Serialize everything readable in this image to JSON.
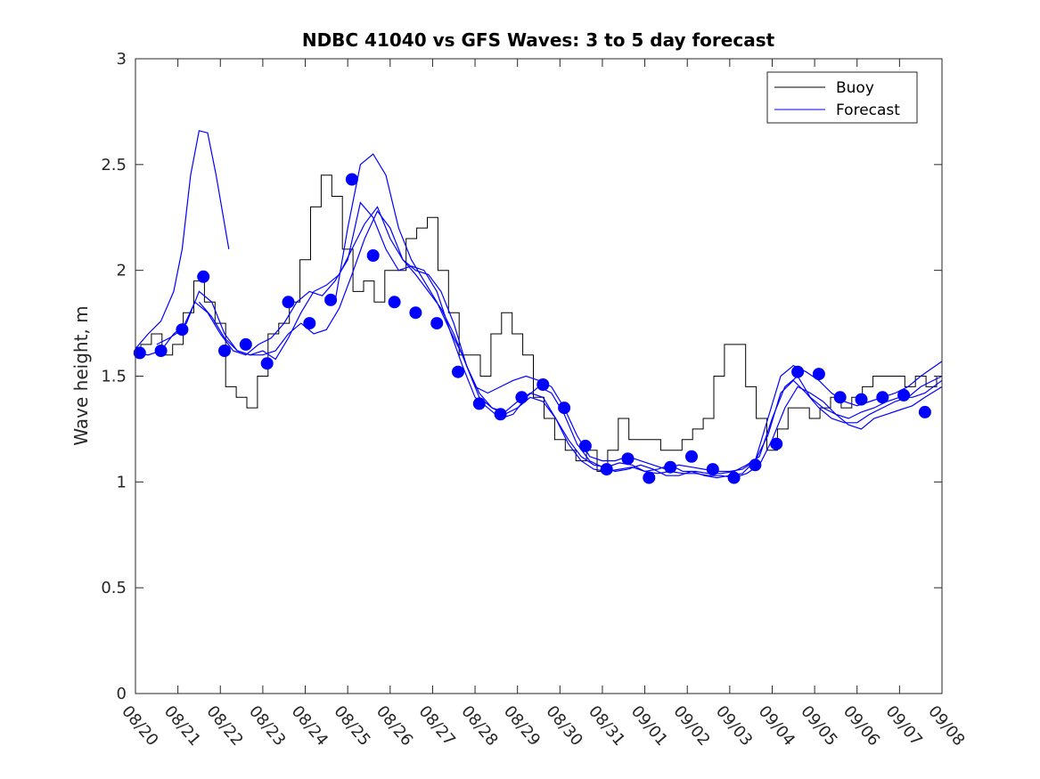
{
  "chart_data": {
    "type": "line",
    "title": "NDBC 41040 vs GFS Waves: 3 to 5 day forecast",
    "xlabel": "",
    "ylabel": "Wave height, m",
    "xlim": [
      0,
      19
    ],
    "ylim": [
      0,
      3
    ],
    "x_tick_labels": [
      "08/20",
      "08/21",
      "08/22",
      "08/23",
      "08/24",
      "08/25",
      "08/26",
      "08/27",
      "08/28",
      "08/29",
      "08/30",
      "08/31",
      "09/01",
      "09/02",
      "09/03",
      "09/04",
      "09/05",
      "09/06",
      "09/07",
      "09/08"
    ],
    "y_ticks": [
      0,
      0.5,
      1,
      1.5,
      2,
      2.5,
      3
    ],
    "y_tick_labels": [
      "0",
      "0.5",
      "1",
      "1.5",
      "2",
      "2.5",
      "3"
    ],
    "legend": {
      "location": "top-right",
      "entries": [
        {
          "label": "Buoy",
          "color": "#000000"
        },
        {
          "label": "Forecast",
          "color": "#0000ff"
        }
      ]
    },
    "colors": {
      "buoy": "#000000",
      "forecast": "#0000ff",
      "markers": "#0000ff"
    },
    "series": [
      {
        "name": "Buoy",
        "x": [
          0,
          0.25,
          0.5,
          0.75,
          1,
          1.25,
          1.5,
          1.75,
          2,
          2.25,
          2.5,
          2.75,
          3,
          3.25,
          3.5,
          3.75,
          4,
          4.25,
          4.5,
          4.75,
          5,
          5.25,
          5.5,
          5.75,
          6,
          6.25,
          6.5,
          6.75,
          7,
          7.25,
          7.5,
          7.75,
          8,
          8.25,
          8.5,
          8.75,
          9,
          9.25,
          9.5,
          9.75,
          10,
          10.25,
          10.5,
          10.75,
          11,
          11.25,
          11.5,
          11.75,
          12,
          12.25,
          12.5,
          12.75,
          13,
          13.25,
          13.5,
          13.75,
          14,
          14.25,
          14.5,
          14.75,
          15,
          15.25,
          15.5,
          15.75,
          16,
          16.25,
          16.5,
          16.75,
          17,
          17.25,
          17.5,
          17.75,
          18,
          18.25,
          18.5,
          18.75,
          19
        ],
        "values": [
          1.6,
          1.65,
          1.7,
          1.6,
          1.65,
          1.8,
          1.95,
          1.85,
          1.75,
          1.45,
          1.4,
          1.35,
          1.5,
          1.7,
          1.75,
          1.85,
          2.05,
          2.3,
          2.45,
          2.35,
          2.1,
          1.9,
          1.95,
          1.85,
          2.0,
          2.0,
          2.15,
          2.2,
          2.25,
          2.0,
          1.8,
          1.6,
          1.6,
          1.5,
          1.7,
          1.8,
          1.7,
          1.6,
          1.4,
          1.3,
          1.2,
          1.15,
          1.1,
          1.15,
          1.05,
          1.15,
          1.3,
          1.2,
          1.2,
          1.2,
          1.15,
          1.15,
          1.2,
          1.25,
          1.3,
          1.5,
          1.65,
          1.65,
          1.45,
          1.3,
          1.15,
          1.25,
          1.35,
          1.35,
          1.3,
          1.35,
          1.4,
          1.35,
          1.4,
          1.45,
          1.5,
          1.5,
          1.5,
          1.45,
          1.5,
          1.45,
          1.5
        ]
      },
      {
        "name": "Forecast",
        "segments": [
          {
            "x": [
              0,
              0.3,
              0.6,
              0.9,
              1.1,
              1.3,
              1.5,
              1.7,
              1.9,
              2.2
            ],
            "values": [
              1.63,
              1.7,
              1.76,
              1.9,
              2.1,
              2.45,
              2.66,
              2.65,
              2.45,
              2.1
            ]
          },
          {
            "x": [
              0,
              0.3,
              0.6,
              0.9,
              1.2,
              1.5,
              1.8,
              2.1,
              2.4,
              2.7,
              3.0,
              3.3,
              3.6,
              3.9,
              4.2,
              4.5,
              4.8,
              5.1,
              5.4,
              5.7,
              6.0,
              6.3,
              6.6,
              6.9,
              7.2,
              7.5,
              7.8,
              8.1,
              8.4,
              8.7,
              9.0,
              9.3,
              9.6,
              9.9,
              10.2,
              10.5,
              10.8,
              11.1,
              11.4,
              11.7,
              12.0,
              12.3,
              12.6,
              12.9,
              13.2,
              13.5,
              13.8,
              14.1,
              14.4,
              14.7,
              15.0,
              15.3,
              15.6,
              15.9,
              16.2,
              16.5,
              16.8,
              17.1,
              17.4,
              17.7,
              18.0,
              18.3,
              18.6,
              19.0
            ],
            "values": [
              1.61,
              1.6,
              1.62,
              1.7,
              1.75,
              1.9,
              1.85,
              1.7,
              1.62,
              1.6,
              1.62,
              1.58,
              1.68,
              1.8,
              1.9,
              1.93,
              1.98,
              2.1,
              2.22,
              2.3,
              2.15,
              2.05,
              2.0,
              1.98,
              1.9,
              1.75,
              1.55,
              1.4,
              1.35,
              1.33,
              1.38,
              1.42,
              1.4,
              1.3,
              1.2,
              1.12,
              1.08,
              1.07,
              1.09,
              1.08,
              1.05,
              1.06,
              1.08,
              1.05,
              1.05,
              1.04,
              1.04,
              1.05,
              1.08,
              1.12,
              1.3,
              1.45,
              1.5,
              1.4,
              1.35,
              1.32,
              1.3,
              1.33,
              1.35,
              1.38,
              1.4,
              1.4,
              1.42,
              1.48
            ]
          },
          {
            "x": [
              0.5,
              0.8,
              1.1,
              1.4,
              1.7,
              2.0,
              2.3,
              2.6,
              2.9,
              3.2,
              3.5,
              3.8,
              4.1,
              4.4,
              4.7,
              5.0,
              5.3,
              5.6,
              5.9,
              6.2,
              6.5,
              6.8,
              7.1,
              7.4,
              7.7,
              8.0,
              8.3,
              8.6,
              8.9,
              9.2,
              9.5,
              9.8,
              10.1,
              10.4,
              10.7,
              11.0,
              11.3,
              11.6,
              11.9,
              12.2,
              12.5,
              12.8,
              13.1,
              13.4,
              13.7,
              14.0,
              14.3,
              14.6,
              14.9,
              15.2,
              15.5,
              15.8,
              16.1,
              16.4,
              16.7,
              17.0,
              17.3,
              17.6,
              17.9,
              18.2,
              18.5,
              19.0
            ],
            "values": [
              1.65,
              1.68,
              1.72,
              1.85,
              1.8,
              1.7,
              1.62,
              1.6,
              1.65,
              1.68,
              1.75,
              1.85,
              1.9,
              1.88,
              1.95,
              2.05,
              2.32,
              2.25,
              2.1,
              2.0,
              2.02,
              2.0,
              1.9,
              1.72,
              1.55,
              1.4,
              1.35,
              1.3,
              1.32,
              1.4,
              1.45,
              1.42,
              1.32,
              1.18,
              1.1,
              1.07,
              1.05,
              1.06,
              1.08,
              1.06,
              1.03,
              1.03,
              1.05,
              1.03,
              1.02,
              1.03,
              1.04,
              1.1,
              1.22,
              1.42,
              1.48,
              1.42,
              1.35,
              1.3,
              1.28,
              1.28,
              1.32,
              1.35,
              1.38,
              1.4,
              1.45,
              1.5
            ]
          },
          {
            "x": [
              1.5,
              1.8,
              2.1,
              2.4,
              2.7,
              3.0,
              3.3,
              3.6,
              3.9,
              4.2,
              4.5,
              4.8,
              5.1,
              5.4,
              5.7,
              6.0,
              6.3,
              6.6,
              6.9,
              7.2,
              7.5,
              7.8,
              8.1,
              8.4,
              8.7,
              9.0,
              9.3,
              9.6,
              9.9,
              10.2,
              10.5,
              10.8,
              11.1,
              11.4,
              11.7,
              12.0,
              12.3,
              12.6,
              12.9,
              13.2,
              13.5,
              13.8,
              14.1,
              14.4,
              14.7,
              15.0,
              15.3,
              15.6,
              15.9,
              16.2,
              16.5,
              16.8,
              17.1,
              17.4,
              17.7,
              18.0,
              18.3,
              18.6,
              19.0
            ],
            "values": [
              1.85,
              1.78,
              1.68,
              1.62,
              1.6,
              1.6,
              1.62,
              1.7,
              1.75,
              1.7,
              1.72,
              1.82,
              1.98,
              2.15,
              2.28,
              2.2,
              2.05,
              1.98,
              1.9,
              1.82,
              1.7,
              1.55,
              1.42,
              1.35,
              1.32,
              1.35,
              1.4,
              1.38,
              1.3,
              1.18,
              1.1,
              1.06,
              1.05,
              1.06,
              1.07,
              1.05,
              1.04,
              1.05,
              1.04,
              1.04,
              1.03,
              1.03,
              1.02,
              1.04,
              1.08,
              1.2,
              1.35,
              1.45,
              1.42,
              1.38,
              1.32,
              1.27,
              1.25,
              1.3,
              1.32,
              1.34,
              1.36,
              1.4,
              1.45
            ]
          },
          {
            "x": [
              4.7,
              5.0,
              5.3,
              5.6,
              5.9,
              6.2,
              6.5,
              6.8,
              7.1,
              7.4,
              7.7,
              8.0,
              8.3,
              8.6,
              8.9,
              9.2,
              9.5,
              9.8,
              10.1,
              10.4,
              10.7,
              11.0,
              11.3,
              11.6,
              11.9,
              12.2,
              12.5,
              12.8,
              13.1,
              13.4,
              13.7,
              14.0,
              14.3,
              14.6,
              14.9,
              15.2,
              15.5,
              15.8,
              16.1,
              16.4,
              16.7,
              17.0,
              17.3,
              17.6,
              17.9,
              18.2,
              18.5,
              19.0
            ],
            "values": [
              1.85,
              2.2,
              2.5,
              2.55,
              2.45,
              2.2,
              2.05,
              1.95,
              1.85,
              1.72,
              1.6,
              1.45,
              1.42,
              1.45,
              1.48,
              1.5,
              1.48,
              1.45,
              1.35,
              1.22,
              1.12,
              1.1,
              1.1,
              1.12,
              1.1,
              1.08,
              1.06,
              1.08,
              1.07,
              1.06,
              1.05,
              1.05,
              1.06,
              1.1,
              1.3,
              1.5,
              1.55,
              1.52,
              1.48,
              1.42,
              1.38,
              1.36,
              1.38,
              1.4,
              1.42,
              1.45,
              1.5,
              1.57
            ]
          }
        ]
      },
      {
        "name": "Forecast markers",
        "type": "scatter",
        "x": [
          0.1,
          0.6,
          1.1,
          1.6,
          2.1,
          2.6,
          3.1,
          3.6,
          4.1,
          4.6,
          5.1,
          5.6,
          6.1,
          6.6,
          7.1,
          7.6,
          8.1,
          8.6,
          9.1,
          9.6,
          10.1,
          10.6,
          11.1,
          11.6,
          12.1,
          12.6,
          13.1,
          13.6,
          14.1,
          14.6,
          15.1,
          15.6,
          16.1,
          16.6,
          17.1,
          17.6,
          18.1,
          18.6
        ],
        "values": [
          1.61,
          1.62,
          1.72,
          1.97,
          1.62,
          1.65,
          1.56,
          1.85,
          1.75,
          1.86,
          2.43,
          2.07,
          1.85,
          1.8,
          1.75,
          1.52,
          1.37,
          1.32,
          1.4,
          1.46,
          1.35,
          1.17,
          1.06,
          1.11,
          1.02,
          1.07,
          1.12,
          1.06,
          1.02,
          1.08,
          1.18,
          1.52,
          1.51,
          1.4,
          1.39,
          1.4,
          1.41,
          1.33
        ]
      }
    ]
  }
}
